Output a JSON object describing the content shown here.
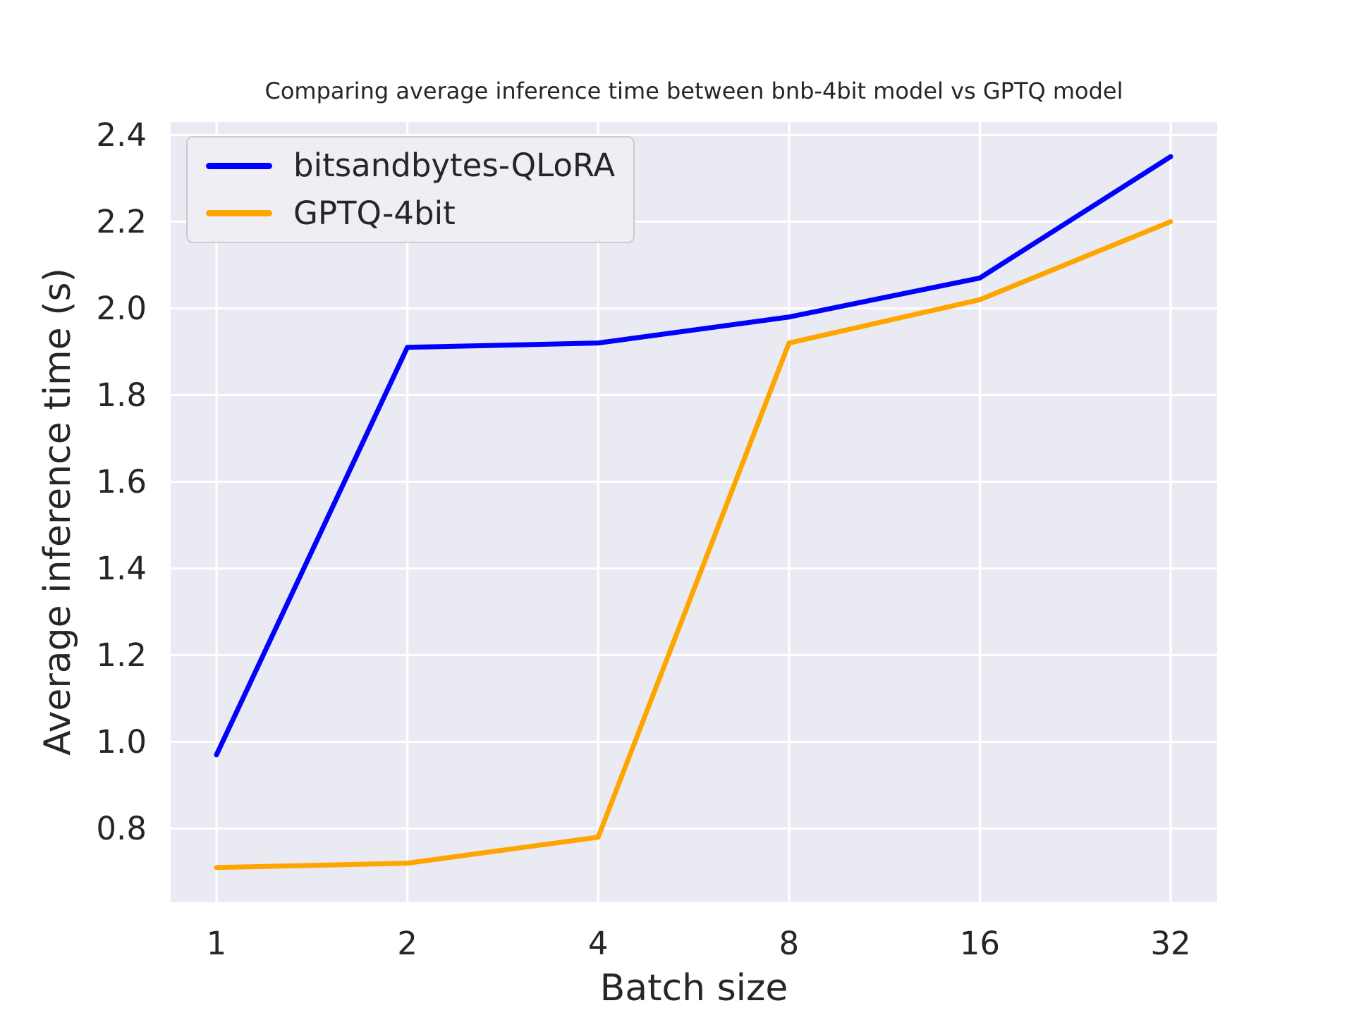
{
  "chart_data": {
    "type": "line",
    "title": "Comparing average inference time between bnb-4bit model vs GPTQ model",
    "xlabel": "Batch size",
    "ylabel": "Average inference time (s)",
    "categories": [
      "1",
      "2",
      "4",
      "8",
      "16",
      "32"
    ],
    "series": [
      {
        "name": "bitsandbytes-QLoRA",
        "color": "#0000ff",
        "values": [
          0.97,
          1.91,
          1.92,
          1.98,
          2.07,
          2.35
        ]
      },
      {
        "name": "GPTQ-4bit",
        "color": "#ffa500",
        "values": [
          0.71,
          0.72,
          0.78,
          1.92,
          2.02,
          2.2
        ]
      }
    ],
    "yticks": [
      0.8,
      1.0,
      1.2,
      1.4,
      1.6,
      1.8,
      2.0,
      2.2,
      2.4
    ],
    "ylim": [
      0.63,
      2.43
    ],
    "x_scale": "log2-categorical",
    "grid": true,
    "legend_position": "upper left",
    "plot_bg": "#eaeaf2",
    "grid_color": "#ffffff",
    "text_color": "#262626"
  }
}
